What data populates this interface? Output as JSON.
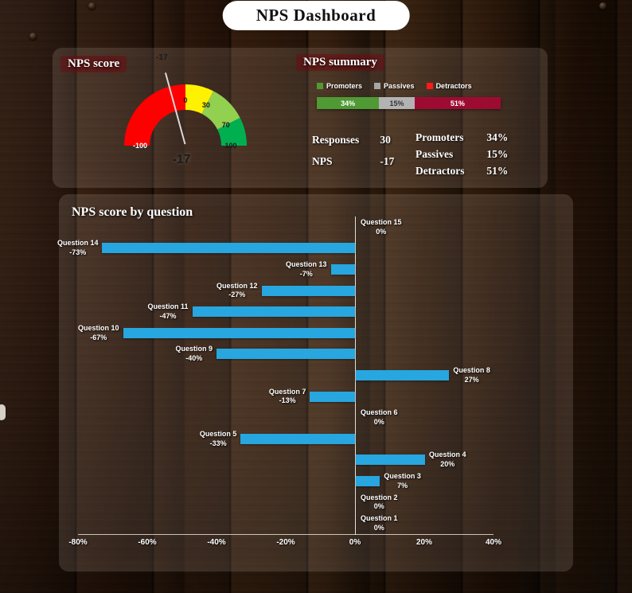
{
  "title": "NPS Dashboard",
  "score_section": {
    "heading": "NPS score"
  },
  "summary": {
    "heading": "NPS summary",
    "legend": [
      {
        "label": "Promoters",
        "color": "#4f9a34"
      },
      {
        "label": "Passives",
        "color": "#a6a6a6"
      },
      {
        "label": "Detractors",
        "color": "#ff1a1a"
      }
    ],
    "segments": [
      {
        "label": "34%",
        "value": 34,
        "color": "#4f9a34",
        "text_color": "#ffffff"
      },
      {
        "label": "15%",
        "value": 15,
        "color": "#b3b3b3",
        "text_color": "#333333"
      },
      {
        "label": "51%",
        "value": 51,
        "color": "#9e0b32",
        "text_color": "#ffffff"
      }
    ],
    "stats": [
      {
        "label": "Responses",
        "value": "30"
      },
      {
        "label": "NPS",
        "value": "-17"
      }
    ],
    "breakdown": [
      {
        "label": "Promoters",
        "value": "34%"
      },
      {
        "label": "Passives",
        "value": "15%"
      },
      {
        "label": "Detractors",
        "value": "51%"
      }
    ]
  },
  "chart_data": [
    {
      "type": "gauge",
      "title": "NPS score",
      "min": -100,
      "max": 100,
      "value": -17,
      "value_label": "-17",
      "needle_label": "-17",
      "segments": [
        {
          "from": -100,
          "to": 0,
          "color": "#fe0000"
        },
        {
          "from": 0,
          "to": 30,
          "color": "#fff200"
        },
        {
          "from": 30,
          "to": 70,
          "color": "#92d050"
        },
        {
          "from": 70,
          "to": 100,
          "color": "#00b050"
        }
      ],
      "ticks": [
        {
          "value": -100,
          "label": "-100",
          "color": "#ffffff"
        },
        {
          "value": 0,
          "label": "0",
          "color": "#1a1a1a"
        },
        {
          "value": 30,
          "label": "30",
          "color": "#1a1a1a"
        },
        {
          "value": 70,
          "label": "70",
          "color": "#1a1a1a"
        },
        {
          "value": 100,
          "label": "100",
          "color": "#1a1a1a"
        }
      ]
    },
    {
      "type": "bar",
      "orientation": "horizontal",
      "title": "NPS score by question",
      "categories": [
        "Question 15",
        "Question 14",
        "Question 13",
        "Question 12",
        "Question 11",
        "Question 10",
        "Question 9",
        "Question 8",
        "Question 7",
        "Question 6",
        "Question 5",
        "Question 4",
        "Question 3",
        "Question 2",
        "Question 1"
      ],
      "values": [
        0,
        -73,
        -7,
        -27,
        -47,
        -67,
        -40,
        27,
        -13,
        0,
        -33,
        20,
        7,
        0,
        0
      ],
      "value_labels": [
        "0%",
        "-73%",
        "-7%",
        "-27%",
        "-47%",
        "-67%",
        "-40%",
        "27%",
        "-13%",
        "0%",
        "-33%",
        "20%",
        "7%",
        "0%",
        "0%"
      ],
      "xlim": [
        -80,
        40
      ],
      "x_ticks": [
        {
          "value": -80,
          "label": "-80%"
        },
        {
          "value": -60,
          "label": "-60%"
        },
        {
          "value": -40,
          "label": "-40%"
        },
        {
          "value": -20,
          "label": "-20%"
        },
        {
          "value": 0,
          "label": "0%"
        },
        {
          "value": 20,
          "label": "20%"
        },
        {
          "value": 40,
          "label": "40%"
        }
      ],
      "bar_color": "#27a6e0",
      "grid": false,
      "legend": false
    }
  ]
}
